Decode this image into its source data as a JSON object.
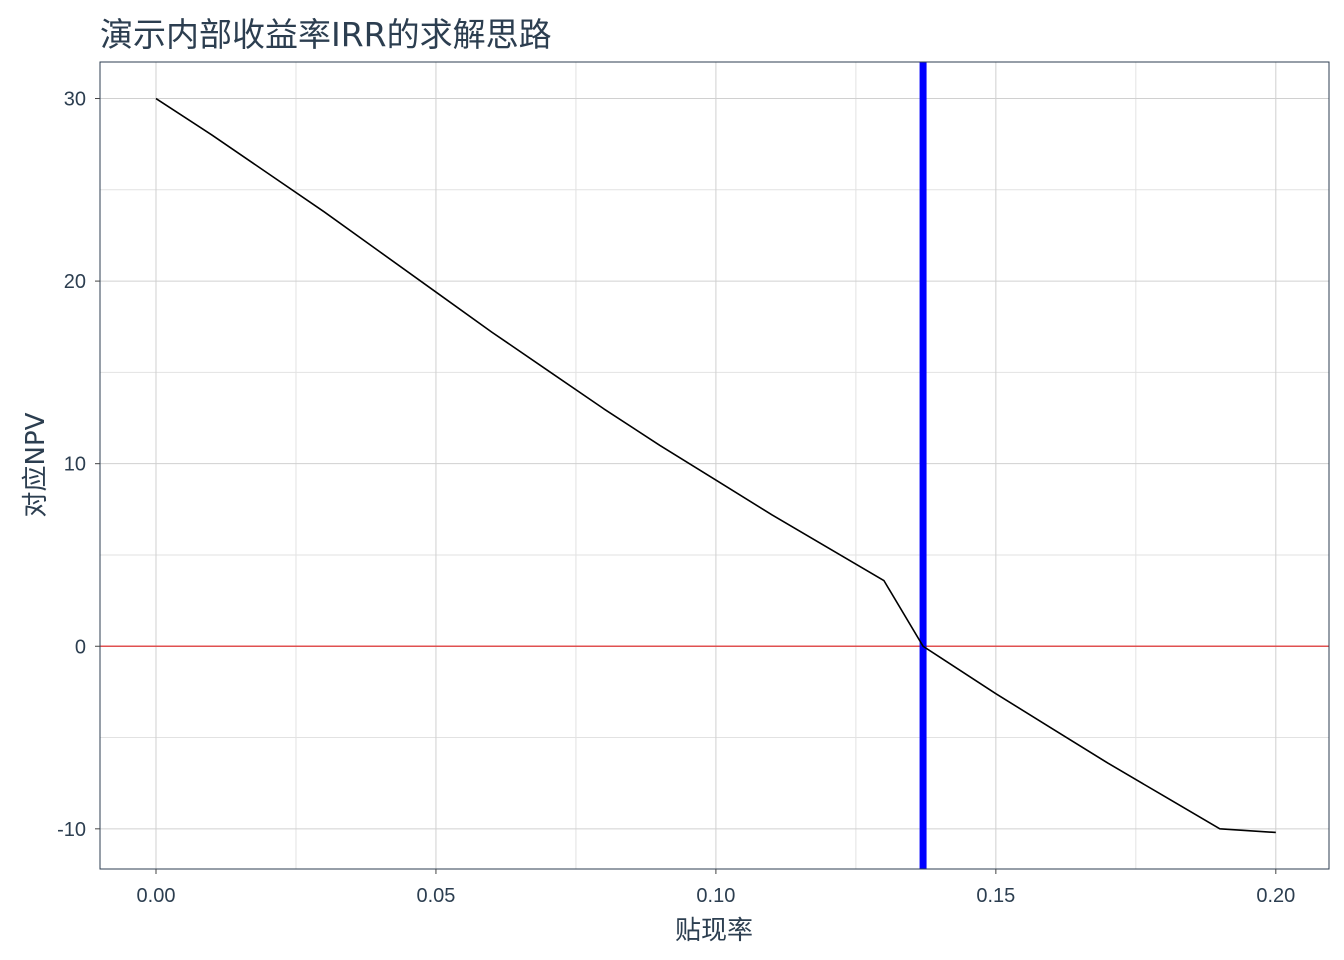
{
  "chart_data": {
    "type": "line",
    "title": "演示内部收益率IRR的求解思路",
    "xlabel": "贴现率",
    "ylabel": "对应NPV",
    "xlim": [
      -0.01,
      0.2095
    ],
    "ylim": [
      -12.2,
      32
    ],
    "x_ticks": [
      0.0,
      0.05,
      0.1,
      0.15,
      0.2
    ],
    "x_tick_labels": [
      "0.00",
      "0.05",
      "0.10",
      "0.15",
      "0.20"
    ],
    "y_ticks": [
      -10,
      0,
      10,
      20,
      30
    ],
    "y_tick_labels": [
      "-10",
      "0",
      "10",
      "20",
      "30"
    ],
    "grid": true,
    "series": [
      {
        "type": "line",
        "color": "#000000",
        "x": [
          0.0,
          0.01,
          0.02,
          0.03,
          0.04,
          0.05,
          0.06,
          0.07,
          0.08,
          0.09,
          0.1,
          0.11,
          0.12,
          0.13,
          0.137,
          0.14,
          0.15,
          0.16,
          0.17,
          0.18,
          0.19,
          0.2
        ],
        "y": [
          30.0,
          28.0,
          25.9,
          23.8,
          21.6,
          19.4,
          17.2,
          15.1,
          13.0,
          11.0,
          9.1,
          7.2,
          5.4,
          3.6,
          0.0,
          -0.6,
          -2.6,
          -4.5,
          -6.4,
          -8.2,
          -10.0,
          -10.2
        ]
      }
    ],
    "reference_lines": [
      {
        "orientation": "horizontal",
        "value": 0,
        "color": "#e05050"
      },
      {
        "orientation": "vertical",
        "value": 0.137,
        "color": "#0000ff"
      }
    ]
  }
}
